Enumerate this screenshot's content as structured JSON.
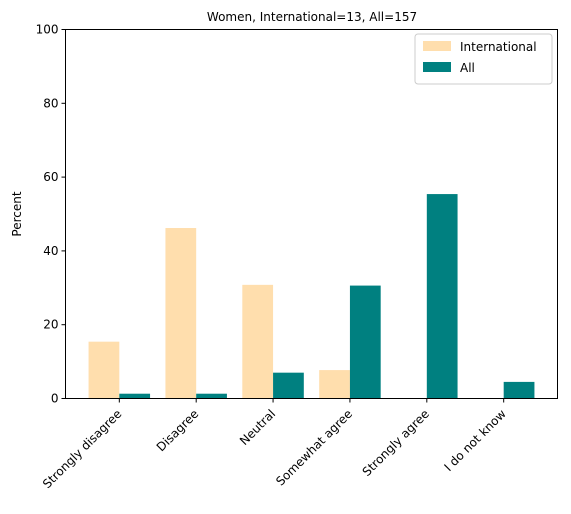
{
  "chart_data": {
    "type": "bar",
    "title": "Women, International=13, All=157",
    "xlabel": "",
    "ylabel": "Percent",
    "ylim": [
      0,
      100
    ],
    "yticks": [
      0,
      20,
      40,
      60,
      80,
      100
    ],
    "categories": [
      "Strongly disagree",
      "Disagree",
      "Neutral",
      "Somewhat agree",
      "Strongly agree",
      "I do not know"
    ],
    "series": [
      {
        "name": "International",
        "color": "#FFDEAD",
        "values": [
          15.4,
          46.2,
          30.8,
          7.7,
          0,
          0
        ]
      },
      {
        "name": "All",
        "color": "#008080",
        "values": [
          1.3,
          1.3,
          7.0,
          30.6,
          55.4,
          4.5
        ]
      }
    ],
    "grid": false,
    "legend_position": "top-right"
  }
}
